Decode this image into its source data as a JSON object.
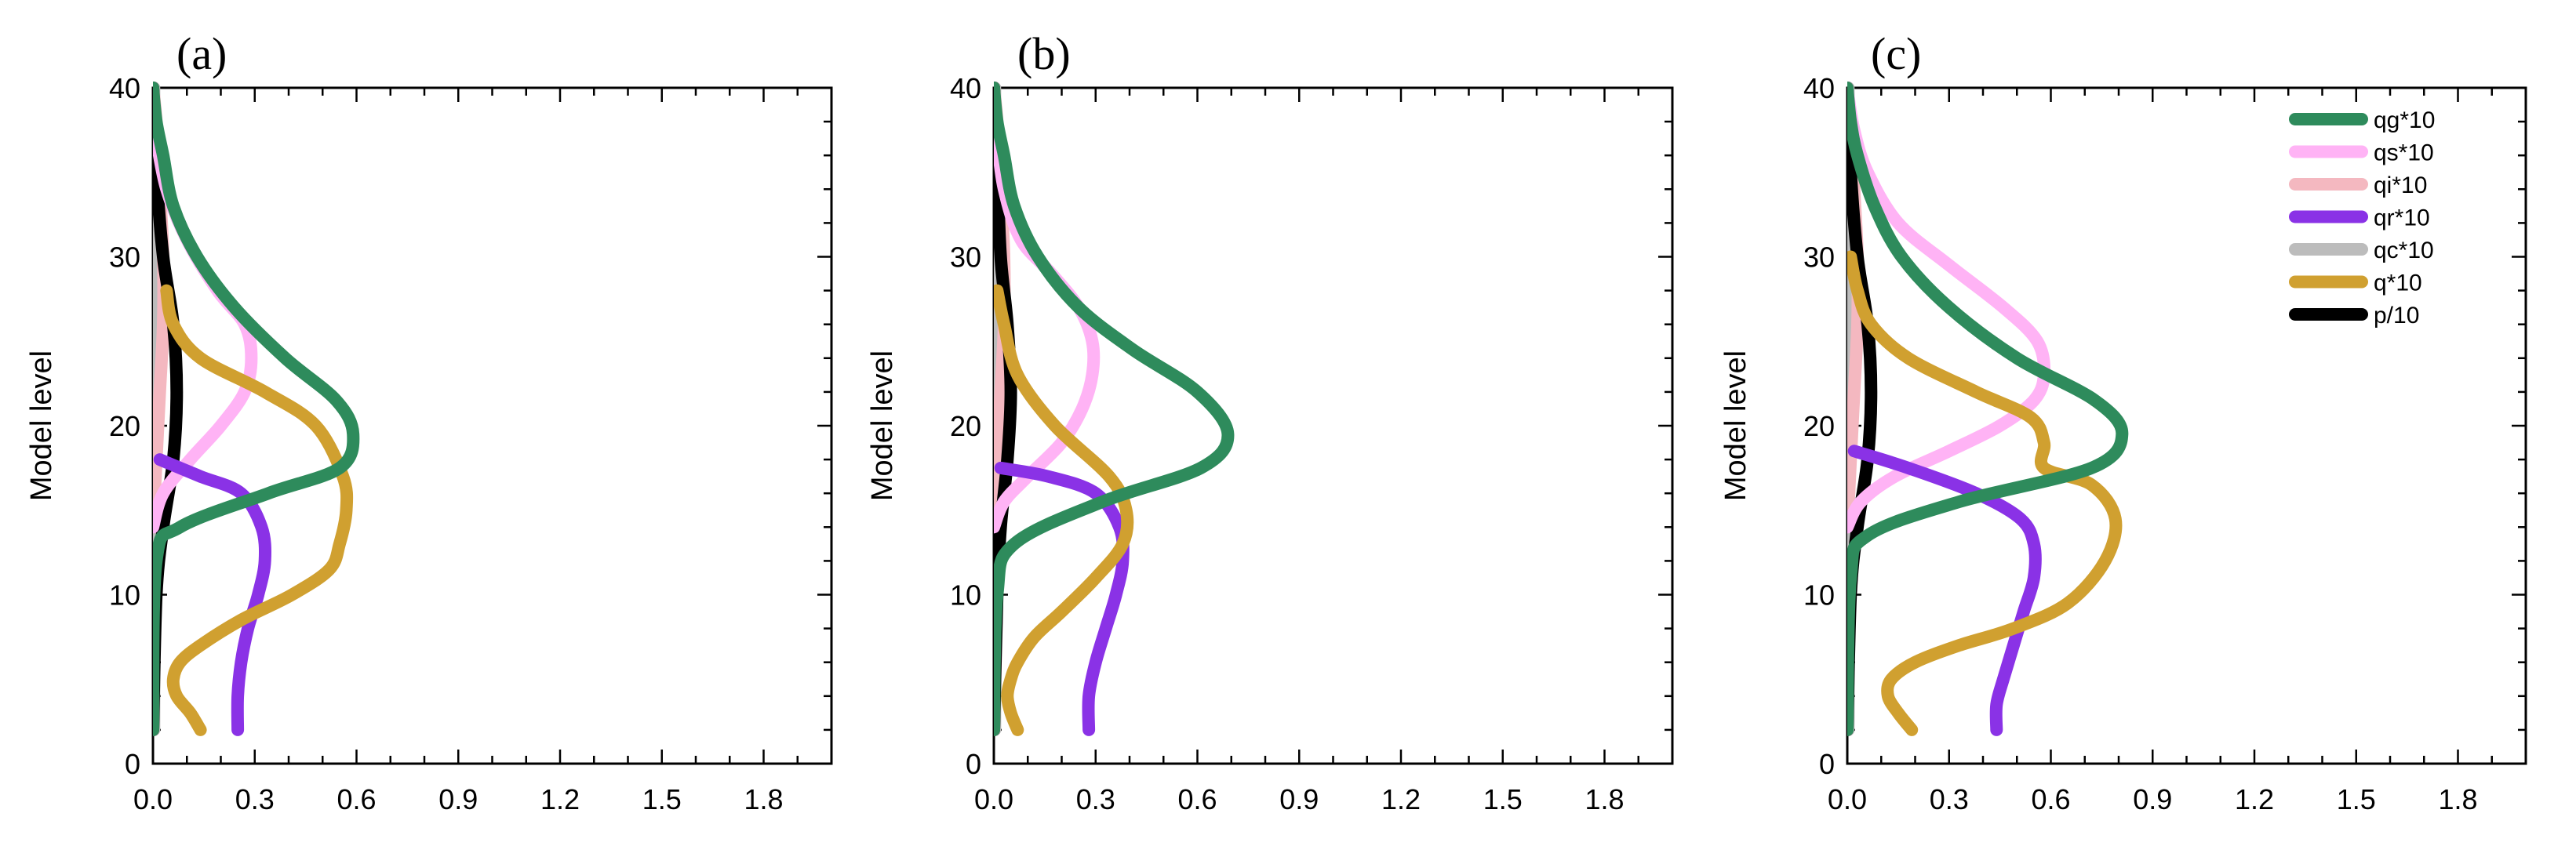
{
  "chart_data": [
    {
      "type": "line",
      "panel_label": "(a)",
      "xlim": [
        0,
        2.0
      ],
      "ylim": [
        0,
        40
      ],
      "x_ticks": [
        "0.0",
        "0.3",
        "0.6",
        "0.9",
        "1.2",
        "1.5",
        "1.8"
      ],
      "y_ticks": [
        "0",
        "10",
        "20",
        "30",
        "40"
      ],
      "ylabel": "Model level",
      "xlabel": "",
      "legend": false,
      "series": [
        {
          "name": "qc*10",
          "color": "#bcbcbc",
          "x": [
            0.003,
            0.004,
            0.005,
            0.004,
            0.003
          ],
          "y": [
            2,
            10,
            20,
            30,
            40
          ]
        },
        {
          "name": "qi*10",
          "color": "#f4b8c0",
          "x": [
            0.0,
            0.01,
            0.02,
            0.03,
            0.03,
            0.02,
            0.01,
            0.0
          ],
          "y": [
            14,
            18,
            22,
            26,
            30,
            34,
            38,
            40
          ]
        },
        {
          "name": "p/10",
          "color": "#000000",
          "x": [
            0.0,
            0.01,
            0.03,
            0.06,
            0.07,
            0.06,
            0.03,
            0.01,
            0.0
          ],
          "y": [
            2,
            10,
            14,
            18,
            22,
            26,
            30,
            35,
            40
          ]
        },
        {
          "name": "qs*10",
          "color": "#ffb3f5",
          "x": [
            0.0,
            0.03,
            0.11,
            0.2,
            0.27,
            0.29,
            0.27,
            0.19,
            0.1,
            0.04,
            0.01
          ],
          "y": [
            14,
            16,
            18,
            20,
            22,
            24,
            26,
            28,
            31,
            34,
            37
          ]
        },
        {
          "name": "qr*10",
          "color": "#8a32e6",
          "x": [
            0.02,
            0.14,
            0.26,
            0.32,
            0.33,
            0.31,
            0.28,
            0.26,
            0.25,
            0.25
          ],
          "y": [
            18,
            17,
            16,
            14,
            12,
            10,
            8,
            6,
            4,
            2
          ]
        },
        {
          "name": "q*10",
          "color": "#d0a030",
          "x": [
            0.14,
            0.11,
            0.07,
            0.06,
            0.08,
            0.14,
            0.26,
            0.41,
            0.52,
            0.55,
            0.57,
            0.56,
            0.48,
            0.33,
            0.14,
            0.06,
            0.04
          ],
          "y": [
            2,
            3,
            4,
            5,
            6,
            7,
            8.5,
            10,
            11.5,
            13,
            15,
            17,
            20,
            22,
            24,
            26,
            28
          ]
        },
        {
          "name": "qg*10",
          "color": "#2e8b5c",
          "x": [
            0.0,
            0.01,
            0.08,
            0.34,
            0.55,
            0.59,
            0.54,
            0.39,
            0.24,
            0.13,
            0.06,
            0.03,
            0.01,
            0.0
          ],
          "y": [
            2,
            12,
            14,
            16,
            17.5,
            19.5,
            21.5,
            24,
            27,
            30,
            33,
            36,
            38,
            40
          ]
        }
      ]
    },
    {
      "type": "line",
      "panel_label": "(b)",
      "xlim": [
        0,
        2.0
      ],
      "ylim": [
        0,
        40
      ],
      "x_ticks": [
        "0.0",
        "0.3",
        "0.6",
        "0.9",
        "1.2",
        "1.5",
        "1.8"
      ],
      "y_ticks": [
        "0",
        "10",
        "20",
        "30",
        "40"
      ],
      "ylabel": "Model level",
      "xlabel": "",
      "legend": false,
      "series": [
        {
          "name": "qc*10",
          "color": "#bcbcbc",
          "x": [
            0.003,
            0.004,
            0.005,
            0.004,
            0.003
          ],
          "y": [
            2,
            10,
            20,
            30,
            40
          ]
        },
        {
          "name": "qi*10",
          "color": "#f4b8c0",
          "x": [
            0.0,
            0.01,
            0.02,
            0.03,
            0.03,
            0.02,
            0.01,
            0.0
          ],
          "y": [
            14,
            18,
            22,
            26,
            30,
            34,
            38,
            40
          ]
        },
        {
          "name": "p/10",
          "color": "#000000",
          "x": [
            0.0,
            0.01,
            0.02,
            0.04,
            0.05,
            0.04,
            0.02,
            0.01,
            0.0
          ],
          "y": [
            2,
            10,
            14,
            18,
            22,
            26,
            30,
            35,
            40
          ]
        },
        {
          "name": "qs*10",
          "color": "#ffb3f5",
          "x": [
            0.0,
            0.03,
            0.1,
            0.2,
            0.26,
            0.29,
            0.29,
            0.25,
            0.17,
            0.08,
            0.03,
            0.01
          ],
          "y": [
            14,
            15.5,
            17,
            19,
            21,
            23,
            25,
            27,
            29,
            31,
            34,
            37
          ]
        },
        {
          "name": "qr*10",
          "color": "#8a32e6",
          "x": [
            0.02,
            0.16,
            0.3,
            0.37,
            0.38,
            0.36,
            0.33,
            0.3,
            0.28,
            0.28
          ],
          "y": [
            17.5,
            17,
            16,
            14,
            12,
            10,
            8,
            6,
            4,
            2
          ]
        },
        {
          "name": "q*10",
          "color": "#d0a030",
          "x": [
            0.07,
            0.05,
            0.04,
            0.05,
            0.07,
            0.12,
            0.2,
            0.3,
            0.38,
            0.39,
            0.34,
            0.18,
            0.07,
            0.03,
            0.01
          ],
          "y": [
            2,
            3,
            4,
            5,
            6,
            7.5,
            9,
            11,
            13,
            15,
            17,
            20,
            23,
            26,
            28
          ]
        },
        {
          "name": "qg*10",
          "color": "#2e8b5c",
          "x": [
            0.0,
            0.01,
            0.06,
            0.32,
            0.61,
            0.69,
            0.6,
            0.41,
            0.25,
            0.13,
            0.06,
            0.03,
            0.01,
            0.0
          ],
          "y": [
            2,
            10,
            13,
            15.5,
            17.5,
            19.5,
            22,
            24.5,
            27,
            30,
            33,
            36,
            38,
            40
          ]
        }
      ]
    },
    {
      "type": "line",
      "panel_label": "(c)",
      "xlim": [
        0,
        2.0
      ],
      "ylim": [
        0,
        40
      ],
      "x_ticks": [
        "0.0",
        "0.3",
        "0.6",
        "0.9",
        "1.2",
        "1.5",
        "1.8"
      ],
      "y_ticks": [
        "0",
        "10",
        "20",
        "30",
        "40"
      ],
      "ylabel": "Model level",
      "xlabel": "",
      "legend": true,
      "legend_position": "top-right",
      "series": [
        {
          "name": "qc*10",
          "color": "#bcbcbc",
          "x": [
            0.003,
            0.004,
            0.005,
            0.004,
            0.003
          ],
          "y": [
            2,
            10,
            20,
            30,
            40
          ]
        },
        {
          "name": "qi*10",
          "color": "#f4b8c0",
          "x": [
            0.0,
            0.01,
            0.02,
            0.03,
            0.03,
            0.02,
            0.01,
            0.0
          ],
          "y": [
            14,
            18,
            22,
            26,
            30,
            34,
            38,
            40
          ]
        },
        {
          "name": "p/10",
          "color": "#000000",
          "x": [
            0.0,
            0.01,
            0.03,
            0.06,
            0.07,
            0.06,
            0.03,
            0.01,
            0.0
          ],
          "y": [
            2,
            10,
            14,
            18,
            22,
            26,
            30,
            35,
            40
          ]
        },
        {
          "name": "qs*10",
          "color": "#ffb3f5",
          "x": [
            0.0,
            0.04,
            0.14,
            0.3,
            0.45,
            0.55,
            0.58,
            0.56,
            0.46,
            0.3,
            0.15,
            0.06,
            0.02,
            0.0
          ],
          "y": [
            14,
            15.5,
            17,
            18.5,
            20,
            21.5,
            23,
            25,
            27,
            29.5,
            32,
            35,
            37.5,
            40
          ]
        },
        {
          "name": "qr*10",
          "color": "#8a32e6",
          "x": [
            0.02,
            0.18,
            0.38,
            0.51,
            0.55,
            0.55,
            0.52,
            0.49,
            0.46,
            0.44,
            0.44
          ],
          "y": [
            18.5,
            17.5,
            16,
            14.5,
            13,
            11,
            9,
            7,
            5,
            3.5,
            2
          ]
        },
        {
          "name": "q*10",
          "color": "#d0a030",
          "x": [
            0.19,
            0.15,
            0.12,
            0.13,
            0.2,
            0.33,
            0.49,
            0.65,
            0.76,
            0.79,
            0.72,
            0.58,
            0.58,
            0.54,
            0.38,
            0.18,
            0.07,
            0.03,
            0.01
          ],
          "y": [
            2,
            3,
            4,
            5,
            6,
            7,
            8,
            9.5,
            12,
            14.5,
            16.5,
            17.5,
            19,
            20.5,
            22,
            24,
            26,
            28,
            30
          ]
        },
        {
          "name": "qg*10",
          "color": "#2e8b5c",
          "x": [
            0.0,
            0.01,
            0.06,
            0.33,
            0.72,
            0.81,
            0.73,
            0.5,
            0.3,
            0.16,
            0.08,
            0.03,
            0.01,
            0.0
          ],
          "y": [
            2,
            11,
            13.5,
            15.5,
            17.5,
            19.5,
            21.5,
            24,
            27,
            30,
            33,
            36,
            38,
            40
          ]
        }
      ]
    }
  ],
  "legend_items": [
    {
      "label": "qg*10",
      "color": "#2e8b5c"
    },
    {
      "label": "qs*10",
      "color": "#ffb3f5"
    },
    {
      "label": "qi*10",
      "color": "#f4b8c0"
    },
    {
      "label": "qr*10",
      "color": "#8a32e6"
    },
    {
      "label": "qc*10",
      "color": "#bcbcbc"
    },
    {
      "label": "q*10",
      "color": "#d0a030"
    },
    {
      "label": "p/10",
      "color": "#000000"
    }
  ]
}
